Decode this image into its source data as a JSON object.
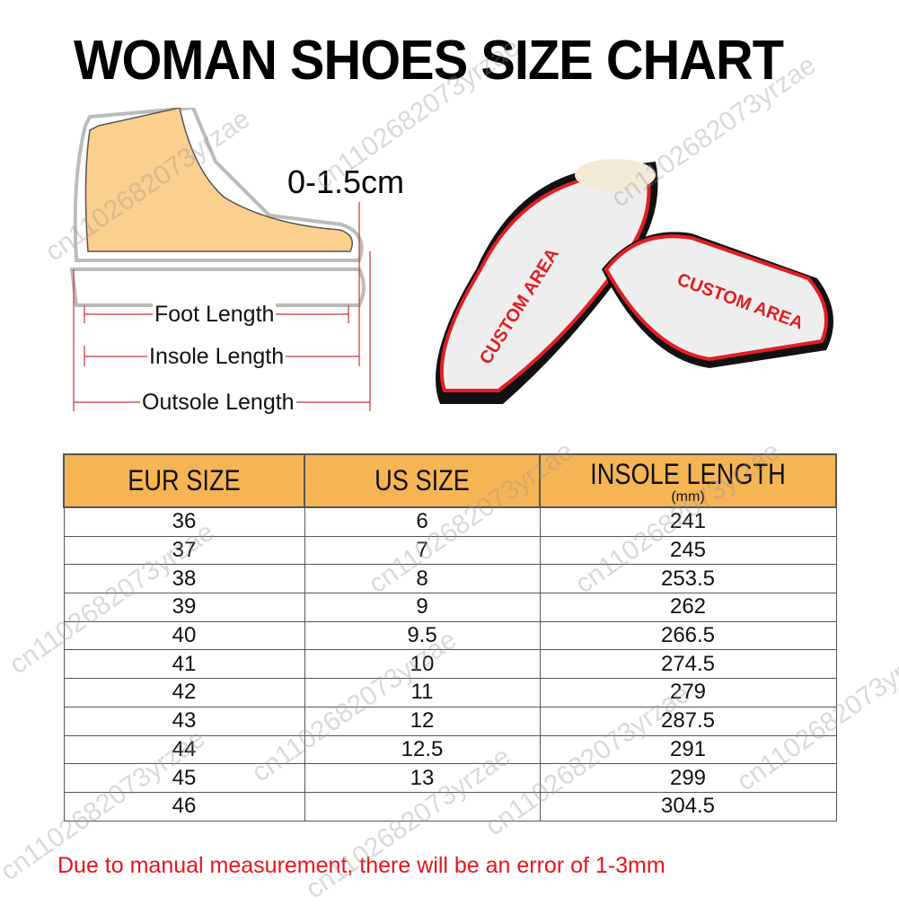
{
  "title": "WOMAN SHOES SIZE CHART",
  "diagram": {
    "gap_label": "0-1.5cm",
    "foot_length": "Foot Length",
    "insole_length": "Insole Length",
    "outsole_length": "Outsole Length",
    "custom_area_label": "CUSTOM AREA"
  },
  "table": {
    "headers": {
      "eur": "EUR SIZE",
      "us": "US SIZE",
      "insole": "INSOLE  LENGTH",
      "insole_unit": "(mm)"
    },
    "rows": [
      {
        "eur": "36",
        "us": "6",
        "insole": "241"
      },
      {
        "eur": "37",
        "us": "7",
        "insole": "245"
      },
      {
        "eur": "38",
        "us": "8",
        "insole": "253.5"
      },
      {
        "eur": "39",
        "us": "9",
        "insole": "262"
      },
      {
        "eur": "40",
        "us": "9.5",
        "insole": "266.5"
      },
      {
        "eur": "41",
        "us": "10",
        "insole": "274.5"
      },
      {
        "eur": "42",
        "us": "11",
        "insole": "279"
      },
      {
        "eur": "43",
        "us": "12",
        "insole": "287.5"
      },
      {
        "eur": "44",
        "us": "12.5",
        "insole": "291"
      },
      {
        "eur": "45",
        "us": "13",
        "insole": "299"
      },
      {
        "eur": "46",
        "us": "",
        "insole": "304.5"
      }
    ]
  },
  "note": "Due to manual measurement, there will be an error of 1-3mm",
  "watermark": "cn1102682073yrzae",
  "colors": {
    "header": "#f6b554",
    "note": "#e8141c",
    "accent": "#e31e24"
  }
}
